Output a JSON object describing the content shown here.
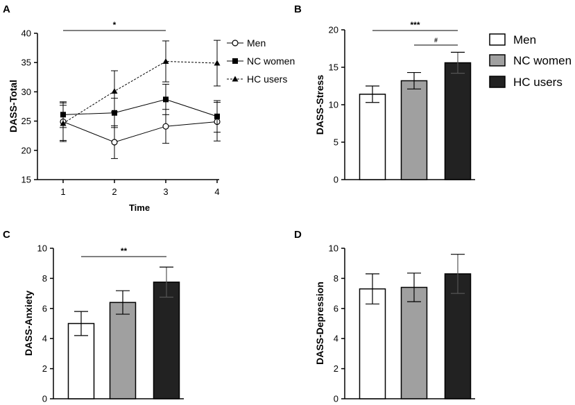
{
  "chart_data": [
    {
      "panel": "A",
      "type": "line",
      "ylabel": "DASS-Total",
      "xlabel": "Time",
      "x": [
        1,
        2,
        3,
        4
      ],
      "ylim": [
        15,
        40
      ],
      "yticks": [
        15,
        20,
        25,
        30,
        35,
        40
      ],
      "series": [
        {
          "name": "Men",
          "values": [
            24.9,
            21.4,
            24.1,
            24.9
          ],
          "err": [
            3.2,
            2.8,
            2.9,
            3.3
          ],
          "marker": "circle-open",
          "dash": "solid"
        },
        {
          "name": "NC women",
          "values": [
            26.1,
            26.4,
            28.7,
            25.8
          ],
          "err": [
            2.2,
            2.5,
            2.6,
            2.7
          ],
          "marker": "square",
          "dash": "solid"
        },
        {
          "name": "HC users",
          "values": [
            24.6,
            30.1,
            35.2,
            34.9
          ],
          "err": [
            3.1,
            3.5,
            3.5,
            3.9
          ],
          "marker": "triangle",
          "dash": "dashed"
        }
      ],
      "annotations": [
        {
          "text": "*",
          "from": 1,
          "to": 3
        }
      ]
    },
    {
      "panel": "B",
      "type": "bar",
      "ylabel": "DASS-Stress",
      "categories": [
        "Men",
        "NC women",
        "HC users"
      ],
      "values": [
        11.4,
        13.2,
        15.6
      ],
      "err": [
        1.1,
        1.1,
        1.4
      ],
      "ylim": [
        0,
        20
      ],
      "yticks": [
        0,
        5,
        10,
        15,
        20
      ],
      "annotations": [
        {
          "text": "***",
          "from": 0,
          "to": 2
        },
        {
          "text": "#",
          "from": 1,
          "to": 2
        }
      ]
    },
    {
      "panel": "C",
      "type": "bar",
      "ylabel": "DASS-Anxiety",
      "categories": [
        "Men",
        "NC women",
        "HC users"
      ],
      "values": [
        5.0,
        6.4,
        7.75
      ],
      "err": [
        0.8,
        0.78,
        1.0
      ],
      "ylim": [
        0,
        10
      ],
      "yticks": [
        0,
        2,
        4,
        6,
        8,
        10
      ],
      "annotations": [
        {
          "text": "**",
          "from": 0,
          "to": 2
        }
      ]
    },
    {
      "panel": "D",
      "type": "bar",
      "ylabel": "DASS-Depression",
      "categories": [
        "Men",
        "NC women",
        "HC users"
      ],
      "values": [
        7.3,
        7.4,
        8.3
      ],
      "err": [
        1.0,
        0.95,
        1.3
      ],
      "ylim": [
        0,
        10
      ],
      "yticks": [
        0,
        2,
        4,
        6,
        8,
        10
      ],
      "annotations": []
    }
  ],
  "legend": {
    "line": [
      "Men",
      "NC women",
      "HC users"
    ],
    "bar": [
      "Men",
      "NC women",
      "HC users"
    ]
  },
  "colors": {
    "Men": "#ffffff",
    "NC women": "#a0a0a0",
    "HC users": "#222222",
    "stroke": "#000000"
  }
}
